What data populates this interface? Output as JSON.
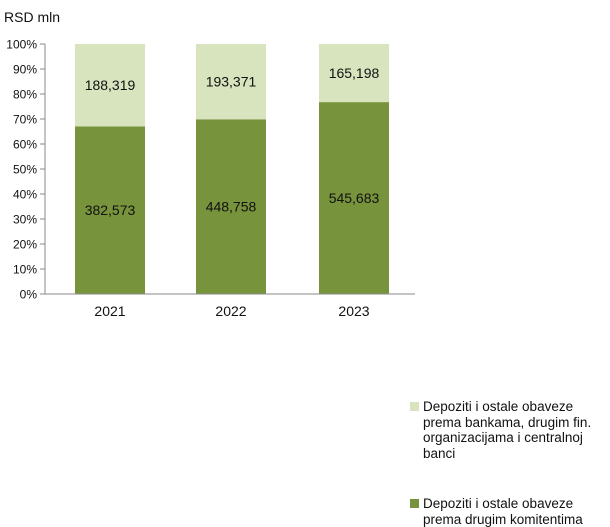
{
  "chart_data": {
    "type": "bar",
    "stacked": true,
    "normalized": true,
    "unit_label": "RSD mln",
    "categories": [
      "2021",
      "2022",
      "2023"
    ],
    "y_ticks": [
      "0%",
      "10%",
      "20%",
      "30%",
      "40%",
      "50%",
      "60%",
      "70%",
      "80%",
      "90%",
      "100%"
    ],
    "ylim": [
      0,
      100
    ],
    "grid": false,
    "legend_position": "right",
    "series": [
      {
        "name": "Depoziti i ostale obaveze prema drugim komitentima",
        "color": "#77933c",
        "values": [
          382573,
          448758,
          545683
        ],
        "labels": [
          "382,573",
          "448,758",
          "545,683"
        ]
      },
      {
        "name": "Depoziti i ostale obaveze prema bankama, drugim fin. organizacijama i centralnoj banci",
        "color": "#d7e4bd",
        "values": [
          188319,
          193371,
          165198
        ],
        "labels": [
          "188,319",
          "193,371",
          "165,198"
        ]
      }
    ]
  }
}
